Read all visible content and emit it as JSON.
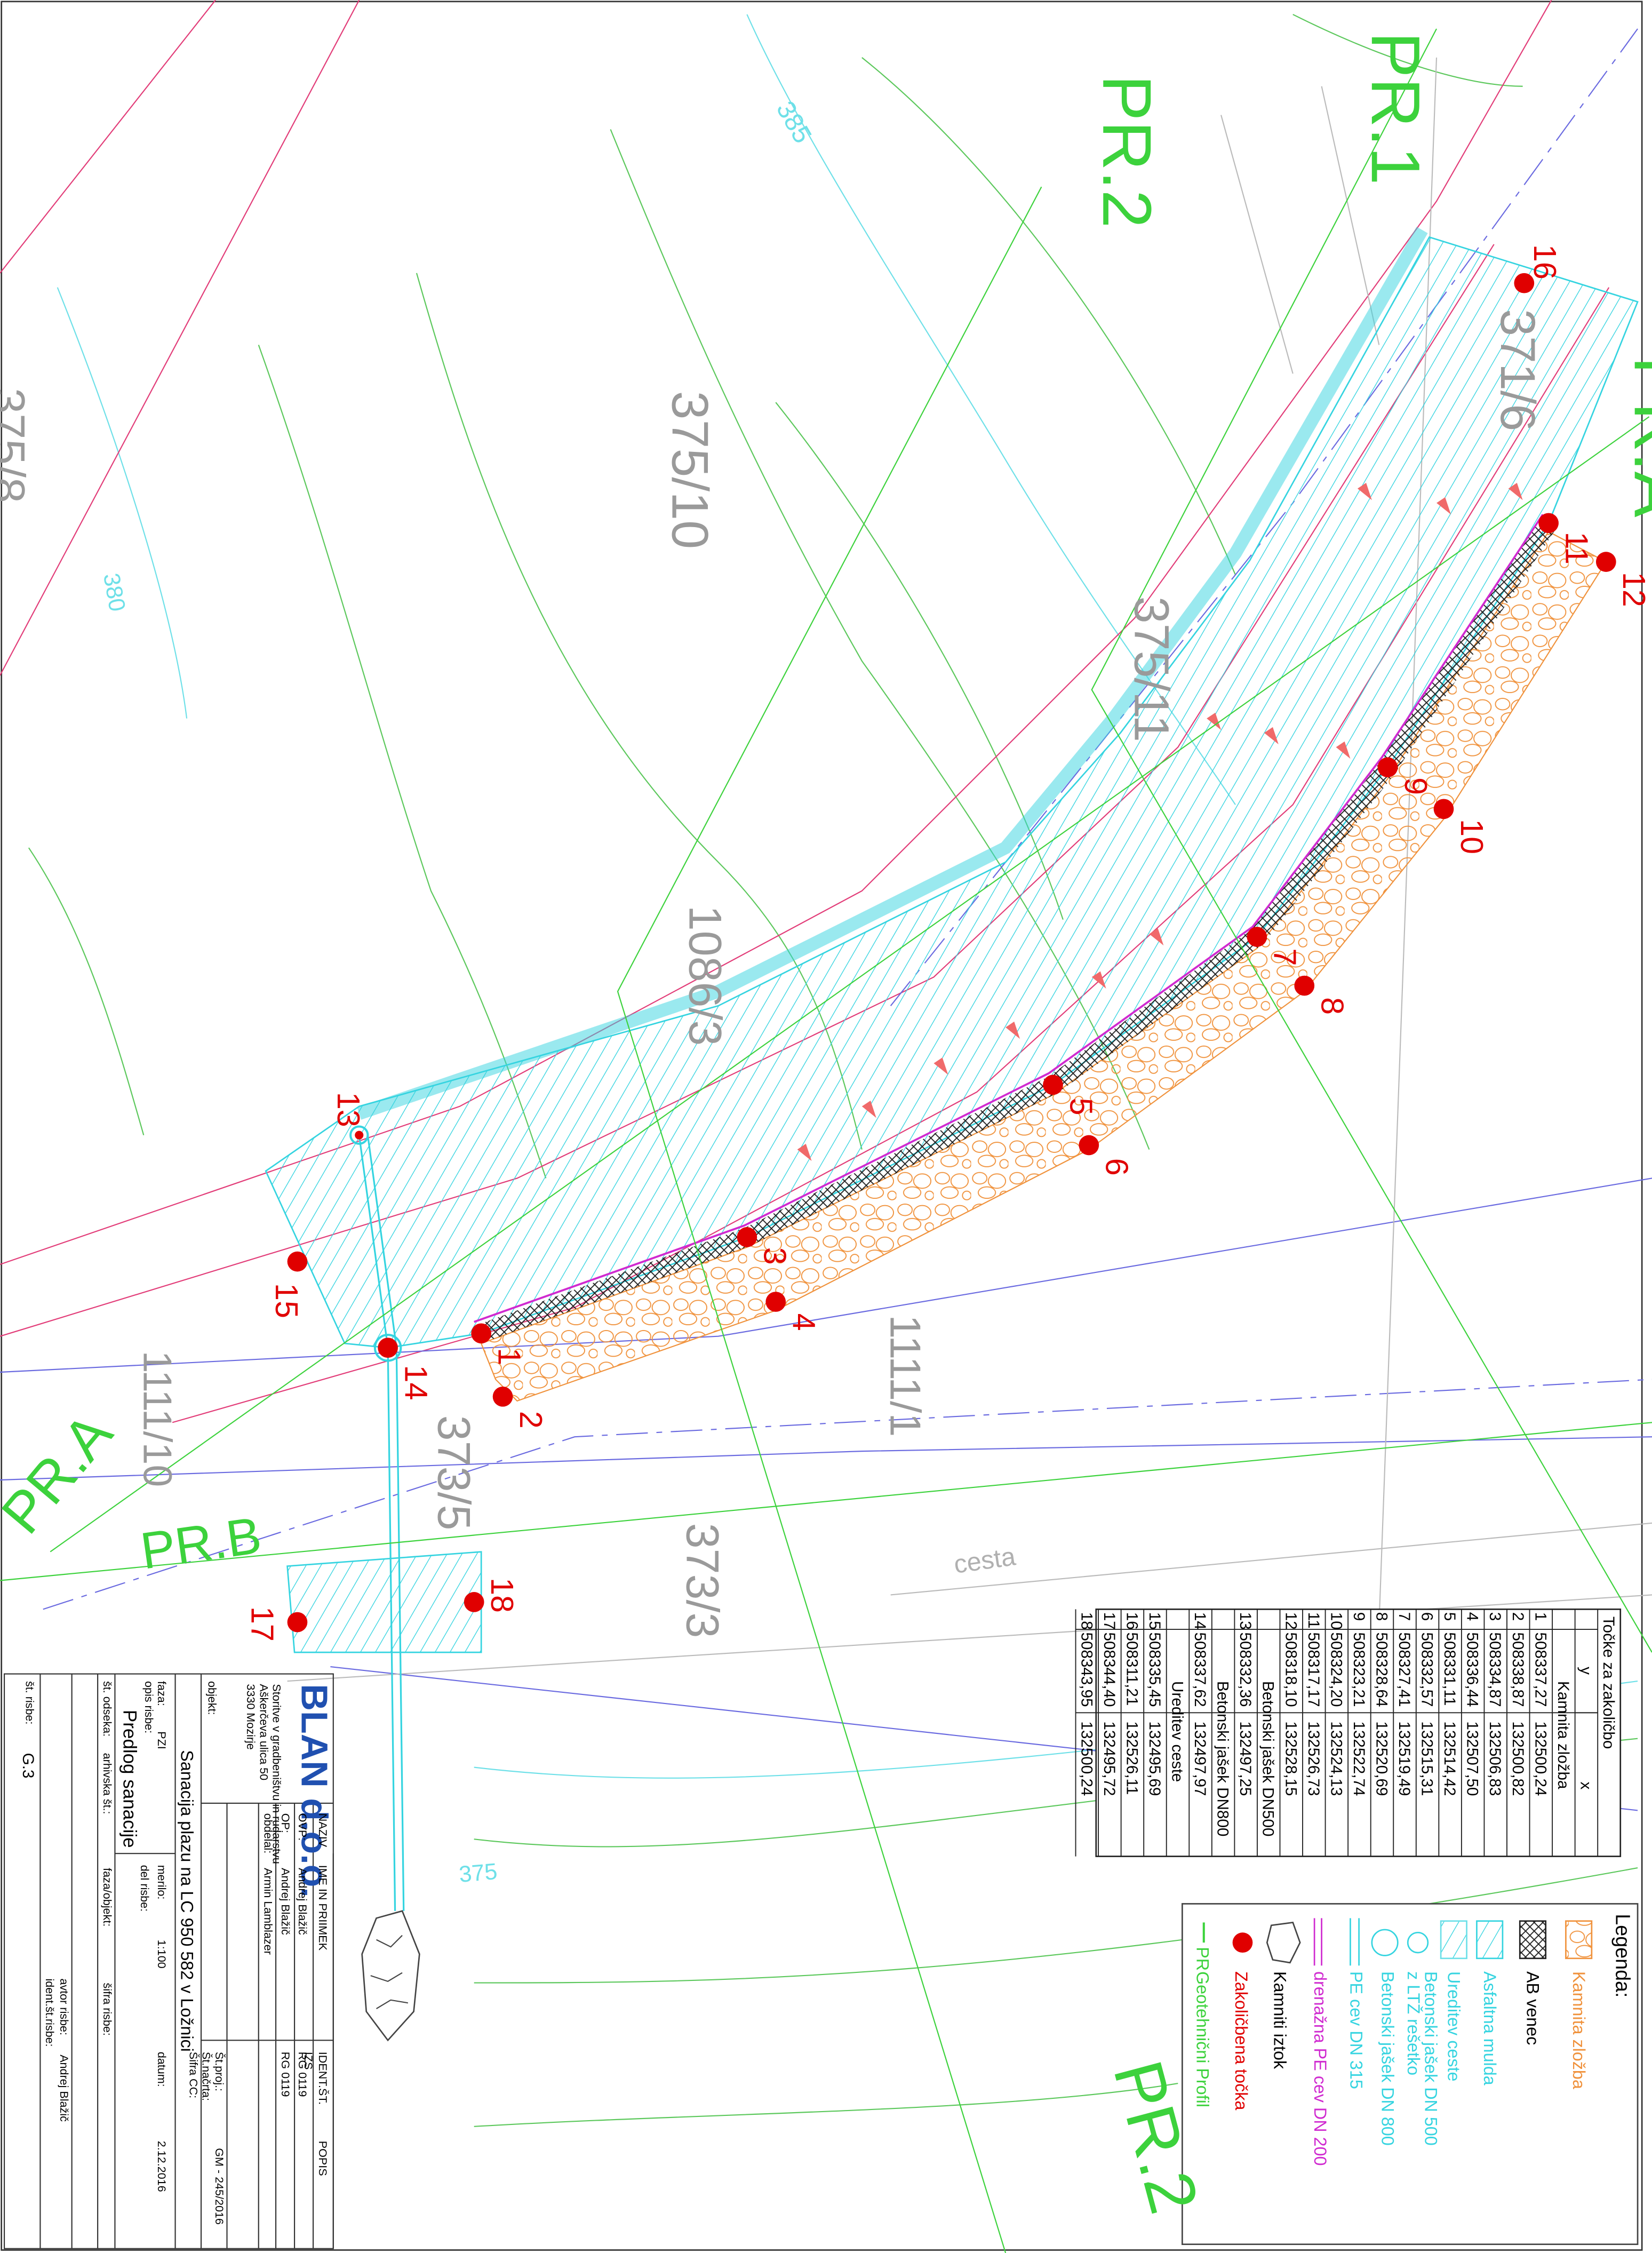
{
  "map": {
    "profiles": [
      "PR.1",
      "PR.2",
      "PR.A",
      "PR.A",
      "PR.B",
      "PR.2"
    ],
    "parcels": [
      "375/10",
      "375/11",
      "1086/3",
      "1111/1",
      "1111/10",
      "371/6",
      "373/5",
      "373/3",
      "375/8"
    ],
    "contours": [
      "385",
      "380",
      "375"
    ],
    "road_label": "cesta",
    "points": [
      "1",
      "2",
      "3",
      "4",
      "5",
      "6",
      "7",
      "8",
      "9",
      "10",
      "11",
      "12",
      "13",
      "14",
      "15",
      "16",
      "17",
      "18"
    ]
  },
  "table": {
    "title": "Točke za zakoličbo",
    "headers": [
      "y",
      "x"
    ],
    "sections": [
      {
        "name": "Kamnita zložba",
        "rows": [
          [
            "1",
            "508337,27",
            "132500,24"
          ],
          [
            "2",
            "508338,87",
            "132500,82"
          ],
          [
            "3",
            "508334,87",
            "132506,83"
          ],
          [
            "4",
            "508336,44",
            "132507,50"
          ],
          [
            "5",
            "508331,11",
            "132514,42"
          ],
          [
            "6",
            "508332,57",
            "132515,31"
          ],
          [
            "7",
            "508327,41",
            "132519,49"
          ],
          [
            "8",
            "508328,64",
            "132520,69"
          ],
          [
            "9",
            "508323,21",
            "132522,74"
          ],
          [
            "10",
            "508324,20",
            "132524,13"
          ],
          [
            "11",
            "508317,17",
            "132526,73"
          ],
          [
            "12",
            "508318,10",
            "132528,15"
          ]
        ]
      },
      {
        "name": "Betonski jašek DN500",
        "rows": [
          [
            "13",
            "508332,36",
            "132497,25"
          ]
        ]
      },
      {
        "name": "Betonski jašek DN800",
        "rows": [
          [
            "14",
            "508337,62",
            "132497,97"
          ]
        ]
      },
      {
        "name": "Ureditev ceste",
        "rows": [
          [
            "15",
            "508335,45",
            "132495,69"
          ],
          [
            "16",
            "508311,21",
            "132526,11"
          ],
          [
            "17",
            "508344,40",
            "132495,72"
          ],
          [
            "18",
            "508343,95",
            "132500,24"
          ]
        ]
      }
    ]
  },
  "legend": {
    "title": "Legenda:",
    "items": [
      [
        "Kamnita zložba"
      ],
      [
        "AB venec"
      ],
      [
        "Asfaltna mulda"
      ],
      [
        "Ureditev ceste"
      ],
      [
        "Betonski jašek DN 500",
        "z LTŽ rešetko"
      ],
      [
        "Betonski jašek DN 800"
      ],
      [
        "PE cev DN 315"
      ],
      [
        "drenažna PE cev DN 200"
      ],
      [
        "Kamniti iztok"
      ],
      [
        "Zakoličbena točka"
      ],
      [
        "Geotehnični Profil"
      ]
    ],
    "profile_symbol": "PR"
  },
  "title_block": {
    "company": "BLAN d.o.o.",
    "company_lines": [
      "Storitve v gradbeništvu in rudarstvu",
      "Aškerčeva ulica 50",
      "3330 Mozirje"
    ],
    "headers": [
      "NAZIV",
      "IME IN PRIIMEK",
      "IDENT.ŠT.",
      "POPIS"
    ],
    "authority": "IZS",
    "roles": [
      {
        "role": "OVP:",
        "name": "Andrej Blažič",
        "id": "RG 0119"
      },
      {
        "role": "OP:",
        "name": "Andrej Blažič",
        "id": "RG 0119"
      },
      {
        "role": "obdelal:",
        "name": "Armin Lamblazer"
      }
    ],
    "project_no_label": "Št.proj.:",
    "project_no": "GM - 245/2016",
    "plan_no_label": "Št.načrta:",
    "cc_label": "Šifra CC:",
    "object_label": "objekt:",
    "object": "Sanacija plazu na LC 950 582 v Ložnici",
    "phase_label": "faza:",
    "phase": "PZI",
    "scale_label": "merilo:",
    "scale": "1:100",
    "date_label": "datum:",
    "date": "2.12.2016",
    "description_label": "opis risbe:",
    "description": "Predlog sanacije",
    "part_label": "del risbe:",
    "section_label": "št. odseka:",
    "archive_label": "arhivska št.:",
    "phase_object_label": "faza/objekt:",
    "drawing_code_label": "šifra risbe:",
    "author_label": "avtor risbe:",
    "author": "Andrej Blažič",
    "drawing_id_label": "ident.št.risbe:",
    "drawing_no_label": "št. risbe:",
    "drawing_no": "G.3"
  }
}
